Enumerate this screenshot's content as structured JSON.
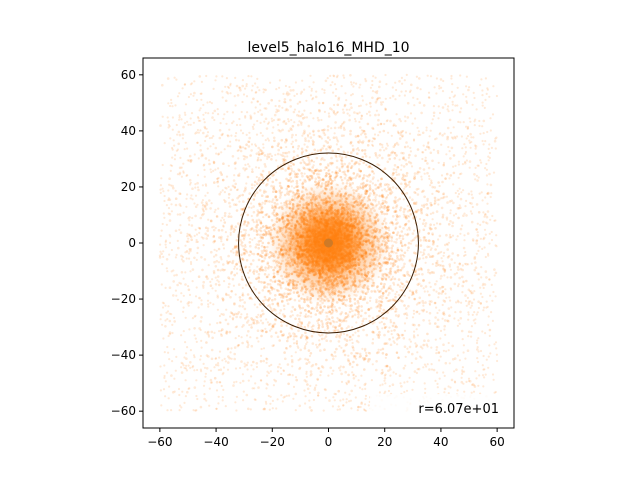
{
  "chart_data": {
    "type": "scatter",
    "title": "level5_halo16_MHD_10",
    "xlabel": "",
    "ylabel": "",
    "xlim": [
      -66,
      66
    ],
    "ylim": [
      -66,
      66
    ],
    "x_ticks": [
      -60,
      -40,
      -20,
      0,
      20,
      40,
      60
    ],
    "y_ticks": [
      -60,
      -40,
      -20,
      0,
      20,
      40,
      60
    ],
    "x_tick_labels": [
      "−60",
      "−40",
      "−20",
      "0",
      "20",
      "40",
      "60"
    ],
    "y_tick_labels": [
      "−60",
      "−40",
      "−20",
      "0",
      "20",
      "40",
      "60"
    ],
    "grid": false,
    "aspect": "equal",
    "particle_extent": [
      -60,
      60
    ],
    "particle_color": "#ff7f0e",
    "circle": {
      "center": [
        0,
        0
      ],
      "radius": 32,
      "color": "#3a1c00"
    },
    "center_marker": {
      "x": 0,
      "y": 0,
      "color": "#c9792a"
    },
    "annotation": {
      "text": "r=6.07e+01",
      "placement": "lower-right"
    }
  }
}
